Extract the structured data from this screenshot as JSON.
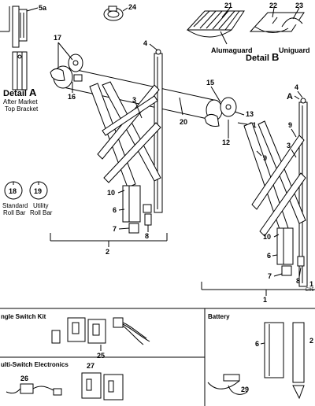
{
  "callouts": {
    "c1": "1",
    "c2": "2",
    "c3a": "3",
    "c3b": "3",
    "c4a": "4",
    "c4b": "4",
    "c5a": "5a",
    "c6a": "6",
    "c6b": "6",
    "c6c": "6",
    "c7a": "7",
    "c7b": "7",
    "c8a": "8",
    "c8b": "8",
    "c9a": "9",
    "c9b": "9",
    "c10a": "10",
    "c10b": "10",
    "c11": "11",
    "c12": "12",
    "c13": "13",
    "c15": "15",
    "c16": "16",
    "c17": "17",
    "c18": "18",
    "c19": "19",
    "c20": "20",
    "c21": "21",
    "c22": "22",
    "c23": "23",
    "c24": "24",
    "c25": "25",
    "c26": "26",
    "c27": "27",
    "c29": "29",
    "c2r": "2"
  },
  "detail_a": {
    "title": "Detail",
    "letter": "A",
    "line1": "After Market",
    "line2": "Top Bracket"
  },
  "detail_b": {
    "title": "Detail",
    "letter": "B",
    "alumaguard": "Alumaguard",
    "uniguard": "Uniguard"
  },
  "marker_a": "A",
  "roll_bars": {
    "standard1": "Standard",
    "standard2": "Roll Bar",
    "utility1": "Utility",
    "utility2": "Roll Bar"
  },
  "sections": {
    "single_switch": "ngle Switch Kit",
    "battery": "Battery",
    "multi_switch": "ulti-Switch Electronics"
  },
  "drawing_code": "E05"
}
